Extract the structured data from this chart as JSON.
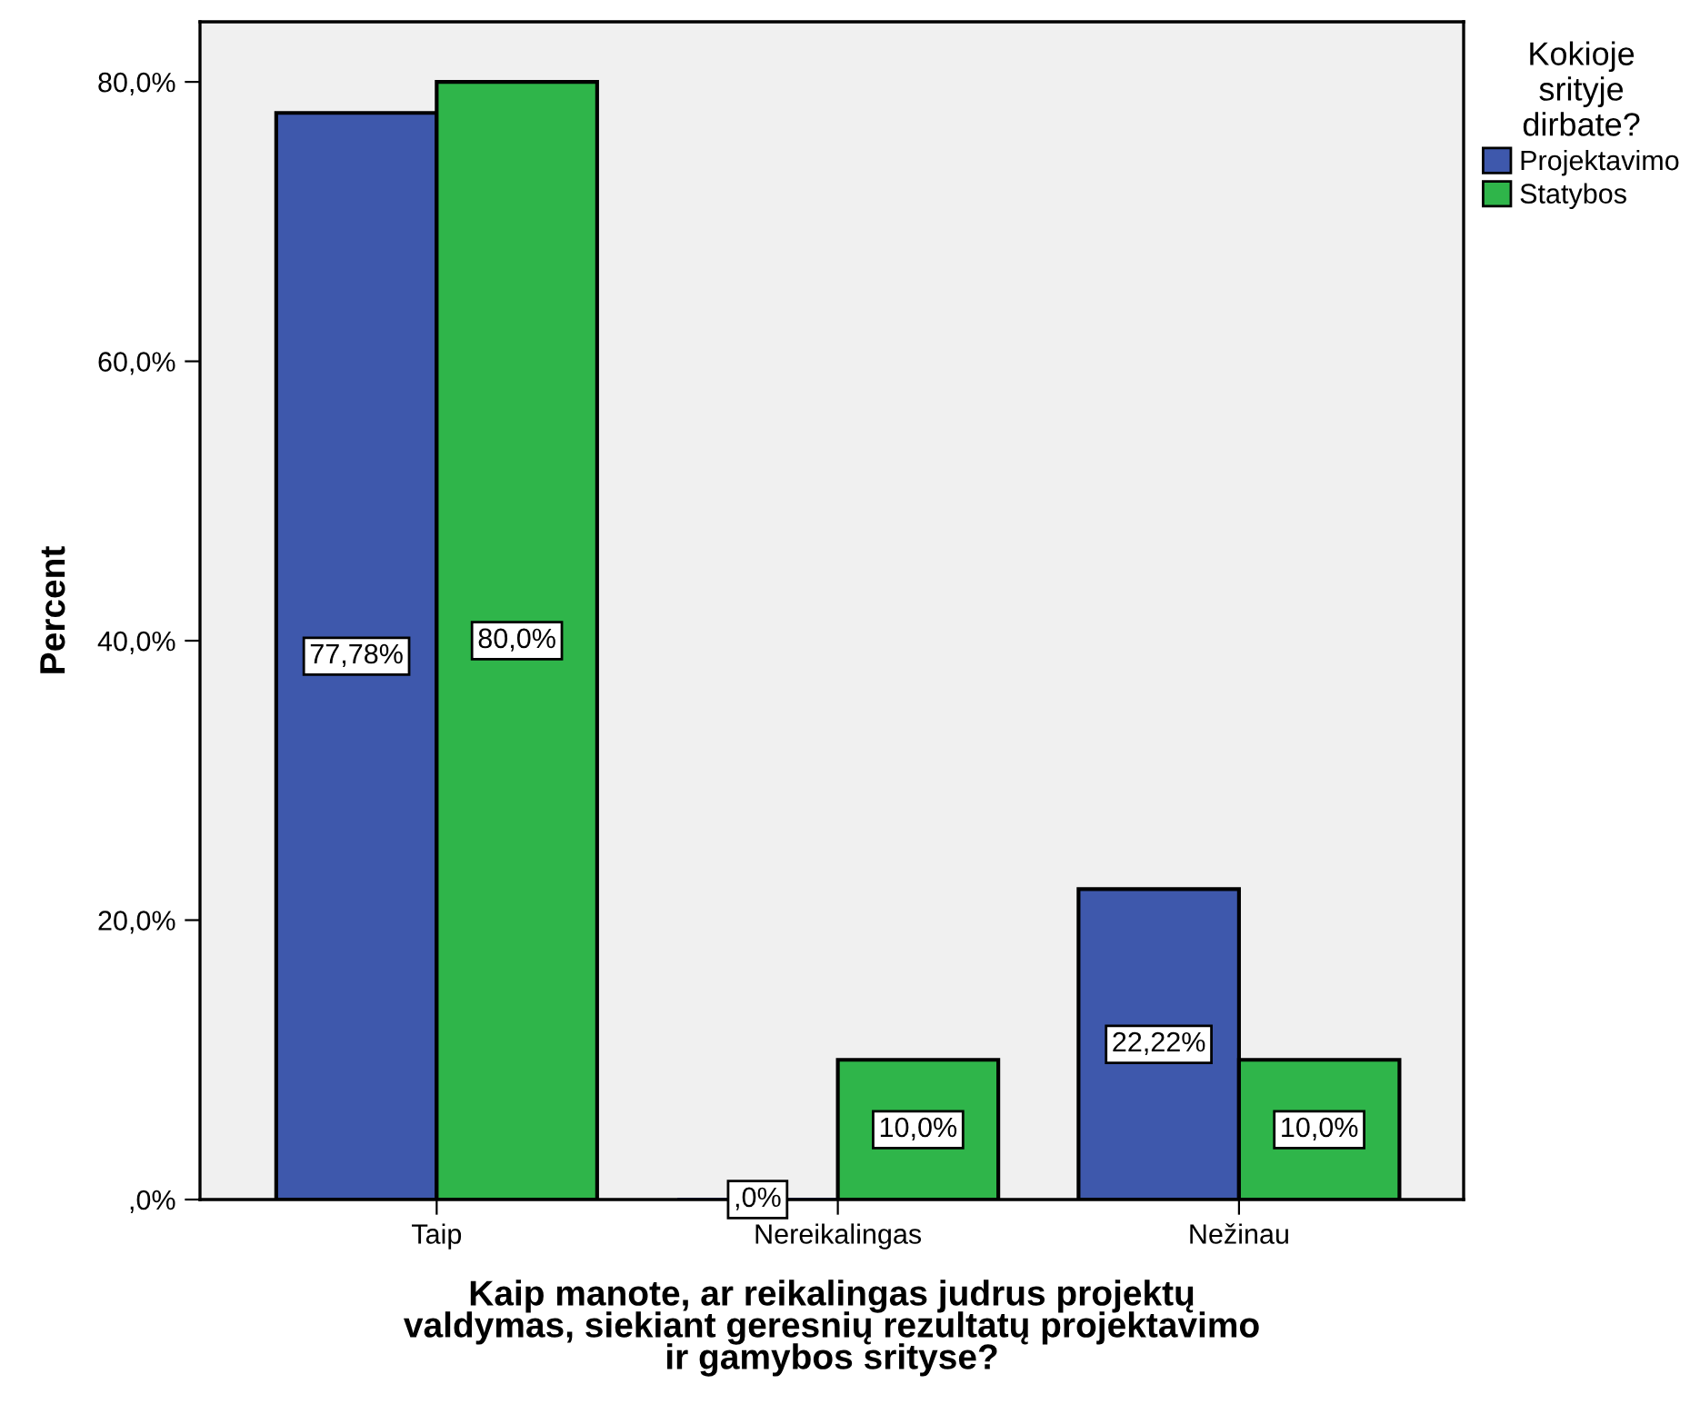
{
  "chart_data": {
    "type": "bar",
    "xlabel": "Kaip manote, ar reikalingas judrus projektų\nvaldymas, siekiant geresnių rezultatų projektavimo\nir gamybos srityse?",
    "ylabel": "Percent",
    "legend_title": "Kokioje\nsrityje\ndirbate?",
    "categories": [
      "Taip",
      "Nereikalingas",
      "Nežinau"
    ],
    "series": [
      {
        "name": "Projektavimo",
        "color": "#3e58ac",
        "values": [
          77.78,
          0,
          22.22
        ],
        "value_labels": [
          "77,78%",
          ",0%",
          "22,22%"
        ]
      },
      {
        "name": "Statybos",
        "color": "#2fb54a",
        "values": [
          80.0,
          10.0,
          10.0
        ],
        "value_labels": [
          "80,0%",
          "10,0%",
          "10,0%"
        ]
      }
    ],
    "ylim": [
      0,
      84.3
    ],
    "yticks": [
      {
        "value": 0,
        "label": ",0%"
      },
      {
        "value": 20,
        "label": "20,0%"
      },
      {
        "value": 40,
        "label": "40,0%"
      },
      {
        "value": 60,
        "label": "60,0%"
      },
      {
        "value": 80,
        "label": "80,0%"
      }
    ],
    "grid": false,
    "legend": "top right"
  }
}
